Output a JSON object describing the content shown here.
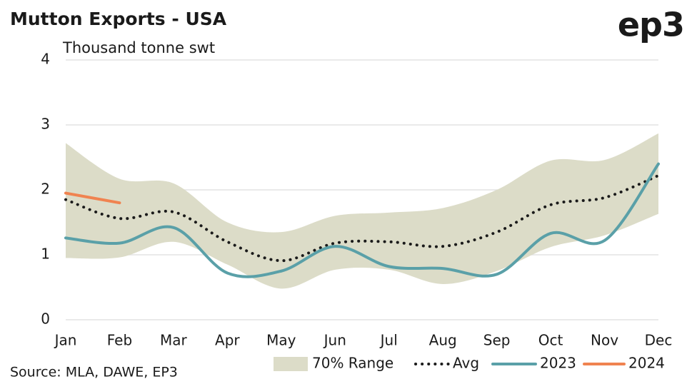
{
  "chart_data": {
    "type": "line",
    "title": "Mutton Exports - USA",
    "y_label": "Thousand tonne swt",
    "logo": "ep3",
    "source": "Source: MLA, DAWE, EP3",
    "categories": [
      "Jan",
      "Feb",
      "Mar",
      "Apr",
      "May",
      "Jun",
      "Jul",
      "Aug",
      "Sep",
      "Oct",
      "Nov",
      "Dec"
    ],
    "ylim": [
      0,
      4
    ],
    "yticks": [
      0,
      1,
      2,
      3,
      4
    ],
    "grid": true,
    "range": {
      "name": "70% Range",
      "color": "#dcdcc8",
      "upper": [
        2.72,
        2.17,
        2.1,
        1.5,
        1.35,
        1.6,
        1.65,
        1.72,
        2.0,
        2.45,
        2.46,
        2.87
      ],
      "lower": [
        0.95,
        0.96,
        1.2,
        0.85,
        0.48,
        0.77,
        0.77,
        0.55,
        0.75,
        1.12,
        1.3,
        1.63
      ]
    },
    "series": [
      {
        "name": "Avg",
        "color": "#1a1a1a",
        "dotted": true,
        "values": [
          1.85,
          1.56,
          1.66,
          1.2,
          0.91,
          1.18,
          1.2,
          1.13,
          1.35,
          1.77,
          1.88,
          2.22
        ]
      },
      {
        "name": "2023",
        "color": "#5aa0a8",
        "values": [
          1.26,
          1.18,
          1.42,
          0.72,
          0.75,
          1.13,
          0.82,
          0.79,
          0.7,
          1.33,
          1.22,
          2.4
        ]
      },
      {
        "name": "2024",
        "color": "#f08350",
        "values": [
          1.95,
          1.8,
          null,
          null,
          null,
          null,
          null,
          null,
          null,
          null,
          null,
          null
        ]
      }
    ]
  }
}
